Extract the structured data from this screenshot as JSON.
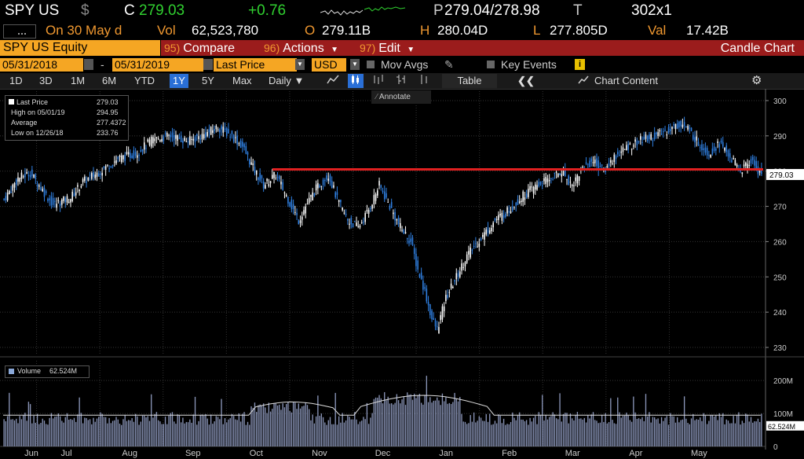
{
  "header": {
    "ticker": "SPY US",
    "currency_sym": "$",
    "c_label": "C",
    "last": "279.03",
    "change": "+0.76",
    "p_label": "P",
    "bid_ask": "279.04/278.98",
    "t_label": "T",
    "size": "302x1",
    "on_label": "On 30 May d",
    "vol_label": "Vol",
    "vol": "62,523,780",
    "o_label": "O",
    "open": "279.11B",
    "h_label": "H",
    "high": "280.04D",
    "l_label": "L",
    "low": "277.805D",
    "val_label": "Val",
    "val": "17.42B"
  },
  "menu": {
    "security": "SPY US Equity",
    "compare_num": "95)",
    "compare": "Compare",
    "actions_num": "96)",
    "actions": "Actions",
    "edit_num": "97)",
    "edit": "Edit",
    "chart_type": "Candle Chart"
  },
  "controls": {
    "start_date": "05/31/2018",
    "dash": "-",
    "end_date": "05/31/2019",
    "field": "Last Price",
    "currency": "USD",
    "mov_avgs": "Mov Avgs",
    "key_events": "Key Events"
  },
  "toolbar": {
    "ranges": [
      "1D",
      "3D",
      "1M",
      "6M",
      "YTD",
      "1Y",
      "5Y",
      "Max"
    ],
    "active_range": "1Y",
    "frequency": "Daily",
    "table": "Table",
    "chart_content": "Chart Content",
    "annotate": "Annotate"
  },
  "legend": {
    "last_price_label": "Last Price",
    "last_price": "279.03",
    "high_label": "High on 05/01/19",
    "high": "294.95",
    "average_label": "Average",
    "average": "277.4372",
    "low_label": "Low on 12/26/18",
    "low": "233.76",
    "volume_label": "Volume",
    "volume": "62.524M"
  },
  "colors": {
    "up": "#ffffff",
    "down": "#2f7fe0",
    "hline": "#e02020",
    "accent": "#f5a623"
  },
  "chart_data": [
    {
      "type": "candlestick",
      "title": "SPY US Equity",
      "series_name": "Last Price",
      "ylim": [
        228,
        302
      ],
      "yticks": [
        230,
        240,
        250,
        260,
        270,
        280,
        290,
        300
      ],
      "months": [
        "Jun",
        "Jul",
        "Aug",
        "Sep",
        "Oct",
        "Nov",
        "Dec",
        "Jan",
        "Feb",
        "Mar",
        "Apr",
        "May"
      ],
      "last_price_marker": "279.03",
      "hline_value": 280.5,
      "close_anchors": [
        [
          0,
          272
        ],
        [
          8,
          278
        ],
        [
          15,
          279.5
        ],
        [
          20,
          276
        ],
        [
          28,
          270.5
        ],
        [
          38,
          272.5
        ],
        [
          45,
          277
        ],
        [
          55,
          280
        ],
        [
          65,
          283.5
        ],
        [
          75,
          285
        ],
        [
          85,
          289
        ],
        [
          95,
          290
        ],
        [
          105,
          288.5
        ],
        [
          115,
          290.5
        ],
        [
          122,
          292.5
        ],
        [
          130,
          290
        ],
        [
          136,
          287
        ],
        [
          142,
          281
        ],
        [
          148,
          276
        ],
        [
          155,
          279
        ],
        [
          162,
          272
        ],
        [
          168,
          266
        ],
        [
          172,
          270
        ],
        [
          178,
          275
        ],
        [
          185,
          279
        ],
        [
          190,
          272
        ],
        [
          196,
          266
        ],
        [
          202,
          264
        ],
        [
          208,
          269
        ],
        [
          214,
          276
        ],
        [
          220,
          270
        ],
        [
          226,
          264
        ],
        [
          232,
          260
        ],
        [
          236,
          252
        ],
        [
          240,
          246
        ],
        [
          244,
          238
        ],
        [
          247,
          235
        ],
        [
          252,
          244
        ],
        [
          258,
          250
        ],
        [
          264,
          256
        ],
        [
          272,
          261
        ],
        [
          280,
          266
        ],
        [
          288,
          269
        ],
        [
          296,
          273
        ],
        [
          304,
          276
        ],
        [
          312,
          278
        ],
        [
          318,
          280
        ],
        [
          324,
          276
        ],
        [
          330,
          281
        ],
        [
          336,
          283
        ],
        [
          342,
          280
        ],
        [
          348,
          284
        ],
        [
          356,
          287
        ],
        [
          364,
          289
        ],
        [
          372,
          290
        ],
        [
          380,
          292
        ],
        [
          386,
          293.5
        ],
        [
          390,
          292
        ],
        [
          396,
          288
        ],
        [
          402,
          285
        ],
        [
          408,
          288
        ],
        [
          414,
          284
        ],
        [
          420,
          280
        ],
        [
          426,
          283
        ],
        [
          432,
          279
        ]
      ],
      "volume_ylim": [
        0,
        260
      ],
      "volume_yticks": [
        0,
        100,
        200
      ],
      "volume_tick_labels": [
        "0",
        "100M",
        "200M"
      ],
      "volume_last": "62.524M"
    }
  ]
}
